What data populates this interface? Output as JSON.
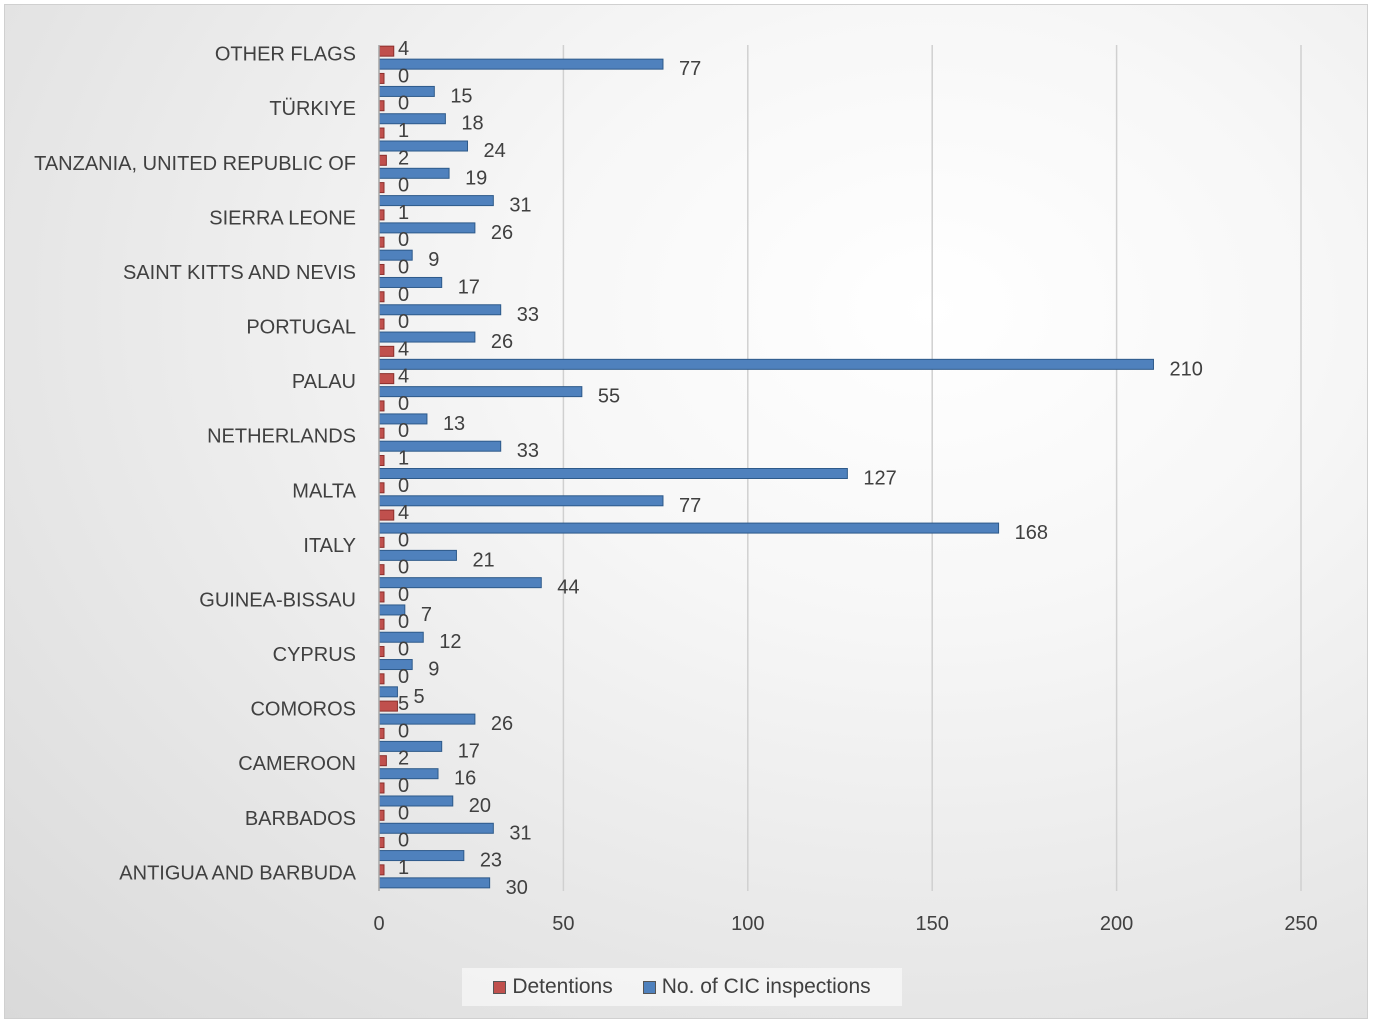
{
  "chart_data": {
    "type": "bar",
    "orientation": "horizontal",
    "x_ticks": [
      "0",
      "50",
      "100",
      "150",
      "200",
      "250"
    ],
    "xlim": [
      0,
      250
    ],
    "grid": true,
    "legend_position": "bottom",
    "category_labels": [
      {
        "label": "ANTIGUA AND BARBUDA",
        "index": 0
      },
      {
        "label": "BARBADOS",
        "index": 2
      },
      {
        "label": "CAMEROON",
        "index": 4
      },
      {
        "label": "COMOROS",
        "index": 6
      },
      {
        "label": "CYPRUS",
        "index": 8
      },
      {
        "label": "GUINEA-BISSAU",
        "index": 10
      },
      {
        "label": "ITALY",
        "index": 12
      },
      {
        "label": "MALTA",
        "index": 14
      },
      {
        "label": "NETHERLANDS",
        "index": 16
      },
      {
        "label": "PALAU",
        "index": 18
      },
      {
        "label": "PORTUGAL",
        "index": 20
      },
      {
        "label": "SAINT KITTS AND NEVIS",
        "index": 22
      },
      {
        "label": "SIERRA LEONE",
        "index": 24
      },
      {
        "label": "TANZANIA, UNITED REPUBLIC OF",
        "index": 26
      },
      {
        "label": "TÜRKIYE",
        "index": 28
      },
      {
        "label": "OTHER FLAGS",
        "index": 30
      }
    ],
    "series": [
      {
        "name": "Detentions",
        "color": "#c0504d",
        "values": [
          1,
          0,
          0,
          0,
          2,
          0,
          5,
          0,
          0,
          0,
          0,
          0,
          0,
          4,
          0,
          1,
          0,
          0,
          4,
          4,
          0,
          0,
          0,
          0,
          1,
          0,
          2,
          1,
          0,
          0,
          4
        ]
      },
      {
        "name": "No. of CIC inspections",
        "color": "#4f81bd",
        "values": [
          30,
          23,
          31,
          20,
          16,
          17,
          26,
          5,
          9,
          12,
          7,
          44,
          21,
          168,
          77,
          127,
          33,
          13,
          55,
          210,
          26,
          33,
          17,
          9,
          26,
          31,
          19,
          24,
          18,
          15,
          77
        ]
      }
    ]
  }
}
